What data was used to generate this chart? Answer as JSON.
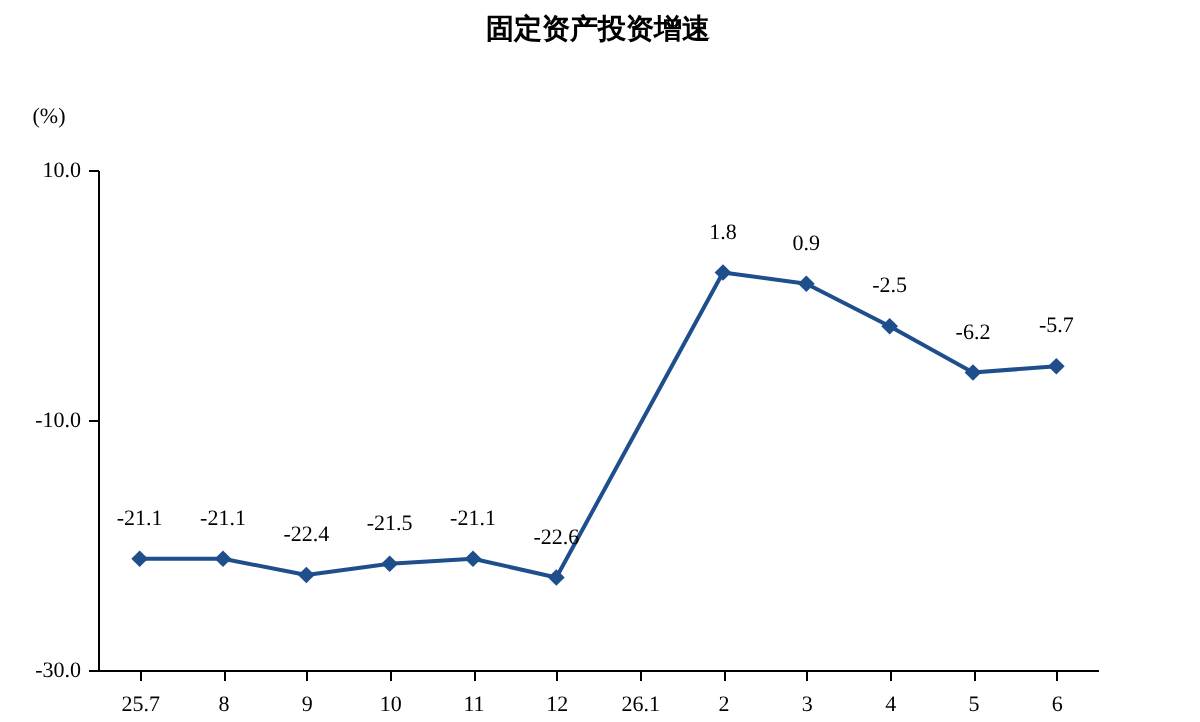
{
  "chart_data": {
    "type": "line",
    "title": "固定资产投资增速",
    "ylabel": "(%)",
    "categories": [
      "25.7",
      "8",
      "9",
      "10",
      "11",
      "12",
      "26.1",
      "2",
      "3",
      "4",
      "5",
      "6"
    ],
    "series": [
      {
        "color": "#1f4e8c",
        "values": [
          -21.1,
          -21.1,
          -22.4,
          -21.5,
          -21.1,
          -22.6,
          null,
          1.8,
          0.9,
          -2.5,
          -6.2,
          -5.7
        ]
      }
    ],
    "ylim": [
      -30,
      10
    ],
    "yticks": [
      {
        "value": -30,
        "label": "-30.0"
      },
      {
        "value": -10,
        "label": "-10.0"
      },
      {
        "value": 10,
        "label": "10.0"
      }
    ],
    "data_labels": true,
    "marker": "diamond",
    "line_style": "solid",
    "grid": false,
    "legend": false
  }
}
